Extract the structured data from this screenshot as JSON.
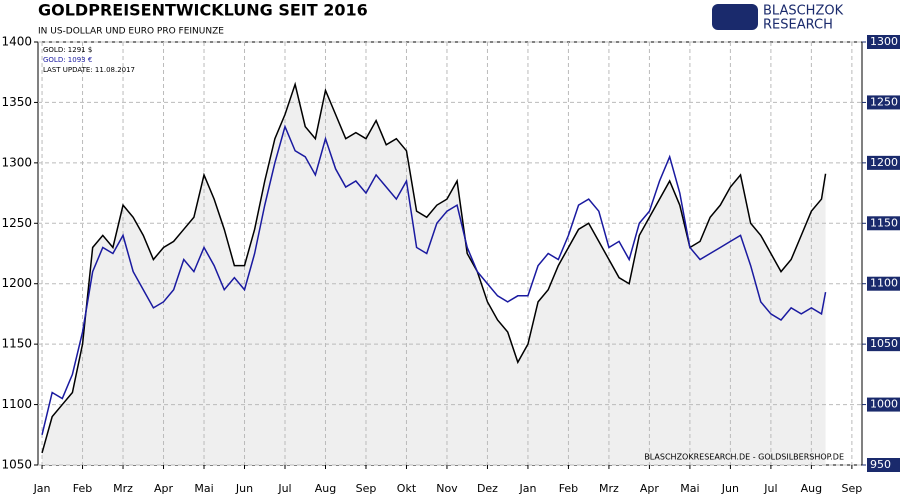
{
  "chart_data": {
    "type": "line",
    "title": "GOLDPREISENTWICKLUNG  SEIT 2016",
    "subtitle": "IN US-DOLLAR UND EURO PRO FEINUNZE",
    "annotation": "LAST UPDATE: 11.08.2017",
    "source": "BLASCHZOKRESEARCH.DE  -  GOLDSILBERSHOP.DE",
    "logo": [
      "BLASCHZOK",
      "RESEARCH"
    ],
    "grid": true,
    "xlim": [
      -0.1,
      20.25
    ],
    "xticks": [
      {
        "value": 0,
        "label": "Jan"
      },
      {
        "value": 1,
        "label": "Feb"
      },
      {
        "value": 2,
        "label": "Mrz"
      },
      {
        "value": 3,
        "label": "Apr"
      },
      {
        "value": 4,
        "label": "Mai"
      },
      {
        "value": 5,
        "label": "Jun"
      },
      {
        "value": 6,
        "label": "Jul"
      },
      {
        "value": 7,
        "label": "Aug"
      },
      {
        "value": 8,
        "label": "Sep"
      },
      {
        "value": 9,
        "label": "Okt"
      },
      {
        "value": 10,
        "label": "Nov"
      },
      {
        "value": 11,
        "label": "Dez"
      },
      {
        "value": 12,
        "label": "Jan"
      },
      {
        "value": 13,
        "label": "Feb"
      },
      {
        "value": 14,
        "label": "Mrz"
      },
      {
        "value": 15,
        "label": "Apr"
      },
      {
        "value": 16,
        "label": "Mai"
      },
      {
        "value": 17,
        "label": "Jun"
      },
      {
        "value": 18,
        "label": "Jul"
      },
      {
        "value": 19,
        "label": "Aug"
      },
      {
        "value": 20,
        "label": "Sep"
      }
    ],
    "ylim": [
      1050,
      1400
    ],
    "yticks": [
      1050,
      1100,
      1150,
      1200,
      1250,
      1300,
      1350,
      1400
    ],
    "y2lim": [
      950,
      1300
    ],
    "y2ticks": [
      950,
      1000,
      1050,
      1100,
      1150,
      1200,
      1250,
      1300
    ],
    "x": [
      0,
      0.25,
      0.5,
      0.75,
      1,
      1.25,
      1.5,
      1.75,
      2,
      2.25,
      2.5,
      2.75,
      3,
      3.25,
      3.5,
      3.75,
      4,
      4.25,
      4.5,
      4.75,
      5,
      5.25,
      5.5,
      5.75,
      6,
      6.25,
      6.5,
      6.75,
      7,
      7.25,
      7.5,
      7.75,
      8,
      8.25,
      8.5,
      8.75,
      9,
      9.25,
      9.5,
      9.75,
      10,
      10.25,
      10.5,
      10.75,
      11,
      11.25,
      11.5,
      11.75,
      12,
      12.25,
      12.5,
      12.75,
      13,
      13.25,
      13.5,
      13.75,
      14,
      14.25,
      14.5,
      14.75,
      15,
      15.25,
      15.5,
      15.75,
      16,
      16.25,
      16.5,
      16.75,
      17,
      17.25,
      17.5,
      17.75,
      18,
      18.25,
      18.5,
      18.75,
      19,
      19.25,
      19.35
    ],
    "series": [
      {
        "name": "GOLD: 1291 $",
        "color": "#000000",
        "values": [
          1060,
          1090,
          1100,
          1110,
          1150,
          1230,
          1240,
          1230,
          1265,
          1255,
          1240,
          1220,
          1230,
          1235,
          1245,
          1255,
          1290,
          1270,
          1245,
          1215,
          1215,
          1245,
          1285,
          1320,
          1340,
          1365,
          1330,
          1320,
          1360,
          1340,
          1320,
          1325,
          1320,
          1335,
          1315,
          1320,
          1310,
          1260,
          1255,
          1265,
          1270,
          1285,
          1225,
          1210,
          1185,
          1170,
          1160,
          1135,
          1150,
          1185,
          1195,
          1215,
          1230,
          1245,
          1250,
          1235,
          1220,
          1205,
          1200,
          1240,
          1255,
          1270,
          1285,
          1265,
          1230,
          1235,
          1255,
          1265,
          1280,
          1290,
          1250,
          1240,
          1225,
          1210,
          1220,
          1240,
          1260,
          1270,
          1291
        ]
      },
      {
        "name": "GOLD: 1093 €",
        "color": "#1a1aa0",
        "axis": "y2",
        "values": [
          975,
          1010,
          1005,
          1025,
          1060,
          1110,
          1130,
          1125,
          1140,
          1110,
          1095,
          1080,
          1085,
          1095,
          1120,
          1110,
          1130,
          1115,
          1095,
          1105,
          1095,
          1125,
          1165,
          1200,
          1230,
          1210,
          1205,
          1190,
          1220,
          1195,
          1180,
          1185,
          1175,
          1190,
          1180,
          1170,
          1185,
          1130,
          1125,
          1150,
          1160,
          1165,
          1130,
          1110,
          1100,
          1090,
          1085,
          1090,
          1090,
          1115,
          1125,
          1120,
          1140,
          1165,
          1170,
          1160,
          1130,
          1135,
          1120,
          1150,
          1160,
          1185,
          1205,
          1175,
          1130,
          1120,
          1125,
          1130,
          1135,
          1140,
          1115,
          1085,
          1075,
          1070,
          1080,
          1075,
          1080,
          1075,
          1093
        ]
      }
    ]
  }
}
